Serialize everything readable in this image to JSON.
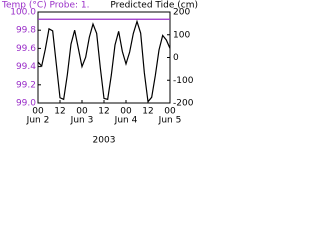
{
  "chart_data": {
    "type": "line",
    "title": "Temp (°C) Probe: 1.",
    "y2_title": "Predicted Tide (cm)",
    "xlabel": "2003",
    "xlim": [
      "2003-06-02T00:00",
      "2003-06-05T00:00"
    ],
    "xticks": [
      {
        "value": "2003-06-02T00:00",
        "label": "00"
      },
      {
        "value": "2003-06-02T12:00",
        "label": "12"
      },
      {
        "value": "2003-06-03T00:00",
        "label": "00"
      },
      {
        "value": "2003-06-03T12:00",
        "label": "12"
      },
      {
        "value": "2003-06-04T00:00",
        "label": "00"
      },
      {
        "value": "2003-06-04T12:00",
        "label": "12"
      },
      {
        "value": "2003-06-05T00:00",
        "label": "00"
      }
    ],
    "xtick_dates": [
      {
        "value": "2003-06-02T00:00",
        "label": "Jun 2"
      },
      {
        "value": "2003-06-03T00:00",
        "label": "Jun 3"
      },
      {
        "value": "2003-06-04T00:00",
        "label": "Jun 4"
      },
      {
        "value": "2003-06-05T00:00",
        "label": "Jun 5"
      }
    ],
    "ylim": [
      99.0,
      100.0
    ],
    "yticks": [
      {
        "value": 99.0,
        "label": "99.0"
      },
      99.2,
      99.4,
      99.6,
      99.8,
      {
        "value": 100.0,
        "label": "100.0"
      }
    ],
    "y2lim": [
      -200,
      200
    ],
    "y2ticks": [
      -200,
      -100,
      0,
      100,
      200
    ],
    "y_color": "#9a2fc8",
    "y2_color": "#000000",
    "series": [
      {
        "color": "#9a2fc8",
        "axis": "y",
        "x": [
          "2003-06-02T00:00",
          "2003-06-05T00:00"
        ],
        "values": [
          99.92,
          99.92
        ]
      },
      {
        "color": "#000000",
        "axis": "y2",
        "x": [
          "2003-06-02T00:00",
          "2003-06-02T02:00",
          "2003-06-02T04:00",
          "2003-06-02T06:00",
          "2003-06-02T08:00",
          "2003-06-02T10:00",
          "2003-06-02T12:00",
          "2003-06-02T14:00",
          "2003-06-02T16:00",
          "2003-06-02T18:00",
          "2003-06-02T20:00",
          "2003-06-02T22:00",
          "2003-06-03T00:00",
          "2003-06-03T02:00",
          "2003-06-03T04:00",
          "2003-06-03T06:00",
          "2003-06-03T08:00",
          "2003-06-03T10:00",
          "2003-06-03T12:00",
          "2003-06-03T14:00",
          "2003-06-03T16:00",
          "2003-06-03T18:00",
          "2003-06-03T20:00",
          "2003-06-03T22:00",
          "2003-06-04T00:00",
          "2003-06-04T02:00",
          "2003-06-04T04:00",
          "2003-06-04T06:00",
          "2003-06-04T08:00",
          "2003-06-04T10:00",
          "2003-06-04T12:00",
          "2003-06-04T14:00",
          "2003-06-04T16:00",
          "2003-06-04T18:00",
          "2003-06-04T20:00",
          "2003-06-04T22:00",
          "2003-06-05T00:00"
        ],
        "values": [
          -20,
          -38,
          37,
          126,
          117,
          -30,
          -177,
          -184,
          -76,
          59,
          120,
          40,
          -40,
          1,
          89,
          147,
          106,
          -46,
          -180,
          -184,
          -77,
          55,
          115,
          27,
          -28,
          24,
          106,
          158,
          107,
          -67,
          -194,
          -175,
          -79,
          33,
          97,
          77,
          40
        ]
      }
    ]
  }
}
